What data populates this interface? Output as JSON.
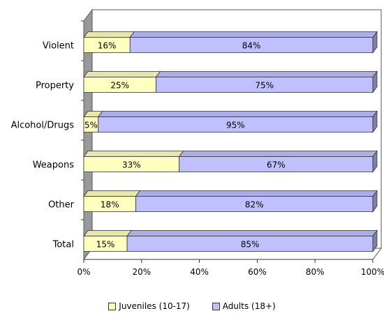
{
  "chart_data": {
    "type": "bar",
    "orientation": "horizontal",
    "stacked": "percent",
    "categories": [
      "Violent",
      "Property",
      "Alcohol/Drugs",
      "Weapons",
      "Other",
      "Total"
    ],
    "series": [
      {
        "name": "Juveniles (10-17)",
        "values": [
          16,
          25,
          5,
          33,
          18,
          15
        ],
        "labels": [
          "16%",
          "25%",
          "5%",
          "33%",
          "18%",
          "15%"
        ],
        "color": "#FFFFC0"
      },
      {
        "name": "Adults (18+)",
        "values": [
          84,
          75,
          95,
          67,
          82,
          85
        ],
        "labels": [
          "84%",
          "75%",
          "95%",
          "67%",
          "82%",
          "85%"
        ],
        "color": "#C0C0FF"
      }
    ],
    "x_ticks": [
      "0%",
      "20%",
      "40%",
      "60%",
      "80%",
      "100%"
    ],
    "xlim": [
      0,
      100
    ],
    "grid": false,
    "legend": "bottom",
    "style": "3d"
  }
}
